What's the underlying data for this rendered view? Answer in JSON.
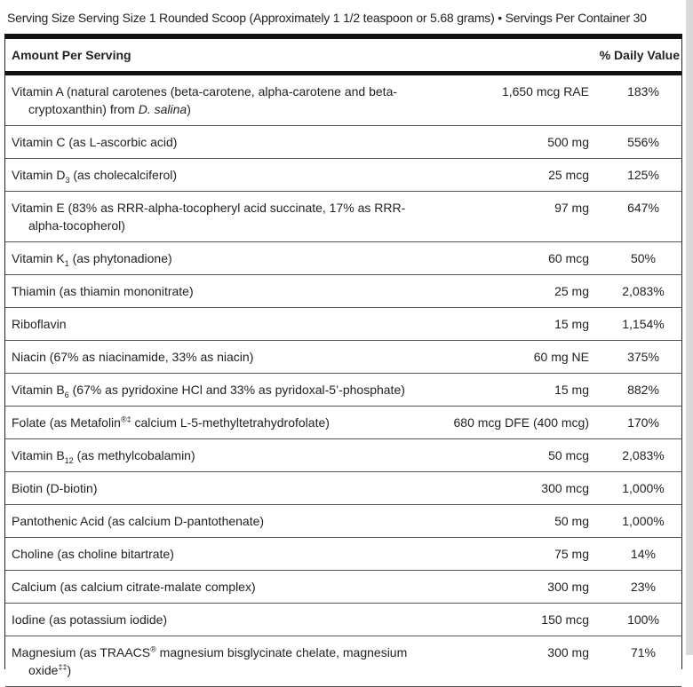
{
  "serving_line": "Serving Size Serving Size 1 Rounded Scoop (Approximately 1 1/2 teaspoon or 5.68 grams) • Servings Per Container 30",
  "table": {
    "header": {
      "amount": "Amount Per Serving",
      "daily_value": "% Daily Value"
    },
    "rows": [
      {
        "name": [
          {
            "text": "Vitamin A (natural carotenes (beta-carotene, alpha-carotene and beta-cryptoxanthin) from "
          },
          {
            "em": "D. salina"
          },
          {
            "text": ")"
          }
        ],
        "amount": "1,650 mcg RAE",
        "dv": "183%"
      },
      {
        "name": [
          {
            "text": "Vitamin C (as L-ascorbic acid)"
          }
        ],
        "amount": "500 mg",
        "dv": "556%"
      },
      {
        "name": [
          {
            "text": "Vitamin D"
          },
          {
            "sub": "3"
          },
          {
            "text": " (as cholecalciferol)"
          }
        ],
        "amount": "25 mcg",
        "dv": "125%"
      },
      {
        "name": [
          {
            "text": "Vitamin E (83% as RRR-alpha-tocopheryl acid succinate, 17% as RRR-alpha-tocopherol)"
          }
        ],
        "amount": "97 mg",
        "dv": "647%"
      },
      {
        "name": [
          {
            "text": "Vitamin K"
          },
          {
            "sub": "1"
          },
          {
            "text": " (as phytonadione)"
          }
        ],
        "amount": "60 mcg",
        "dv": "50%"
      },
      {
        "name": [
          {
            "text": "Thiamin (as thiamin mononitrate)"
          }
        ],
        "amount": "25 mg",
        "dv": "2,083%"
      },
      {
        "name": [
          {
            "text": "Riboflavin"
          }
        ],
        "amount": "15 mg",
        "dv": "1,154%"
      },
      {
        "name": [
          {
            "text": "Niacin (67% as niacinamide, 33% as niacin)"
          }
        ],
        "amount": "60 mg NE",
        "dv": "375%"
      },
      {
        "name": [
          {
            "text": "Vitamin B"
          },
          {
            "sub": "6"
          },
          {
            "text": " (67% as pyridoxine HCl and 33% as pyridoxal-5’-phosphate)"
          }
        ],
        "amount": "15 mg",
        "dv": "882%"
      },
      {
        "name": [
          {
            "text": "Folate (as Metafolin"
          },
          {
            "sup": "®‡"
          },
          {
            "text": " calcium L-5-methyltetrahydrofolate)"
          }
        ],
        "amount": "680 mcg DFE (400 mcg)",
        "dv": "170%"
      },
      {
        "name": [
          {
            "text": "Vitamin B"
          },
          {
            "sub": "12"
          },
          {
            "text": " (as methylcobalamin)"
          }
        ],
        "amount": "50 mcg",
        "dv": "2,083%"
      },
      {
        "name": [
          {
            "text": "Biotin (D-biotin)"
          }
        ],
        "amount": "300 mcg",
        "dv": "1,000%"
      },
      {
        "name": [
          {
            "text": "Pantothenic Acid (as calcium D-pantothenate)"
          }
        ],
        "amount": "50 mg",
        "dv": "1,000%"
      },
      {
        "name": [
          {
            "text": "Choline (as choline bitartrate)"
          }
        ],
        "amount": "75 mg",
        "dv": "14%"
      },
      {
        "name": [
          {
            "text": "Calcium (as calcium citrate-malate complex)"
          }
        ],
        "amount": "300 mg",
        "dv": "23%"
      },
      {
        "name": [
          {
            "text": "Iodine (as potassium iodide)"
          }
        ],
        "amount": "150 mcg",
        "dv": "100%"
      },
      {
        "name": [
          {
            "text": "Magnesium (as TRAACS"
          },
          {
            "sup": "®"
          },
          {
            "text": " magnesium bisglycinate chelate, magnesium oxide"
          },
          {
            "sup": "‡‡"
          },
          {
            "text": ")"
          }
        ],
        "amount": "300 mg",
        "dv": "71%"
      }
    ]
  }
}
